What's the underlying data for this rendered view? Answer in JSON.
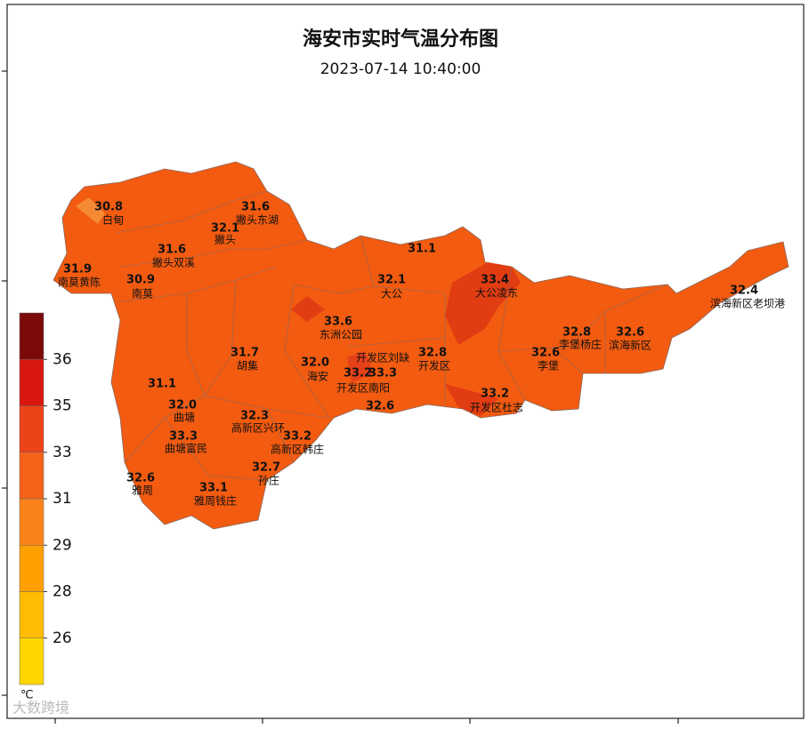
{
  "title": "海安市实时气温分布图",
  "subtitle": "2023-07-14 10:40:00",
  "stations": [
    {
      "name": "白甸",
      "value": 30.8,
      "value_label": "30.8"
    },
    {
      "name": "撇头东湖",
      "value": 31.6,
      "value_label": "31.6"
    },
    {
      "name": "撇头",
      "value": 32.1,
      "value_label": "32.1"
    },
    {
      "name": "撇头双溪",
      "value": 31.6,
      "value_label": "31.6"
    },
    {
      "name": "南莫黄陈",
      "value": 31.9,
      "value_label": "31.9"
    },
    {
      "name": "南莫",
      "value": 30.9,
      "value_label": "30.9"
    },
    {
      "value": 31.1,
      "value_label": "31.1"
    },
    {
      "name": "大公",
      "value": 32.1,
      "value_label": "32.1"
    },
    {
      "name": "大公凌东",
      "value": 33.4,
      "value_label": "33.4"
    },
    {
      "name": "滨海新区老坝港",
      "value": 32.4,
      "value_label": "32.4"
    },
    {
      "name": "东洲公园",
      "value": 33.6,
      "value_label": "33.6"
    },
    {
      "name": "李堡杨庄",
      "value": 32.8,
      "value_label": "32.8"
    },
    {
      "name": "滨海新区",
      "value": 32.6,
      "value_label": "32.6"
    },
    {
      "name": "胡集",
      "value": 31.7,
      "value_label": "31.7"
    },
    {
      "name": "李堡",
      "value": 32.6,
      "value_label": "32.6"
    },
    {
      "name": "开发区",
      "value": 32.8,
      "value_label": "32.8"
    },
    {
      "name": "开发区刘缺"
    },
    {
      "name": "海安",
      "value": 32.0,
      "value_label": "32.0"
    },
    {
      "name": "开发区南阳",
      "value": 33.2,
      "value_label": "33.2"
    },
    {
      "value": 33.3,
      "value_label": "33.3"
    },
    {
      "value": 32.6,
      "value_label": "32.6"
    },
    {
      "name": "开发区杜志",
      "value": 33.2,
      "value_label": "33.2"
    },
    {
      "value": 31.1,
      "value_label": "31.1"
    },
    {
      "name": "曲塘",
      "value": 32.0,
      "value_label": "32.0"
    },
    {
      "name": "高新区兴环",
      "value": 32.3,
      "value_label": "32.3"
    },
    {
      "name": "曲塘富民",
      "value": 33.3,
      "value_label": "33.3"
    },
    {
      "name": "高新区韩庄",
      "value": 33.2,
      "value_label": "33.2"
    },
    {
      "name": "孙庄",
      "value": 32.7,
      "value_label": "32.7"
    },
    {
      "name": "雅周",
      "value": 32.6,
      "value_label": "32.6"
    },
    {
      "name": "雅周钱庄",
      "value": 33.1,
      "value_label": "33.1"
    }
  ],
  "colorbar": {
    "ticks": [
      26,
      28,
      29,
      31,
      33,
      35,
      36
    ],
    "colors": [
      "#ffd600",
      "#ffbc00",
      "#ffa000",
      "#fb8218",
      "#f5621a",
      "#ec4318",
      "#d8180f",
      "#7d0a0a"
    ],
    "unit": "℃"
  },
  "watermark": "大数跨境"
}
